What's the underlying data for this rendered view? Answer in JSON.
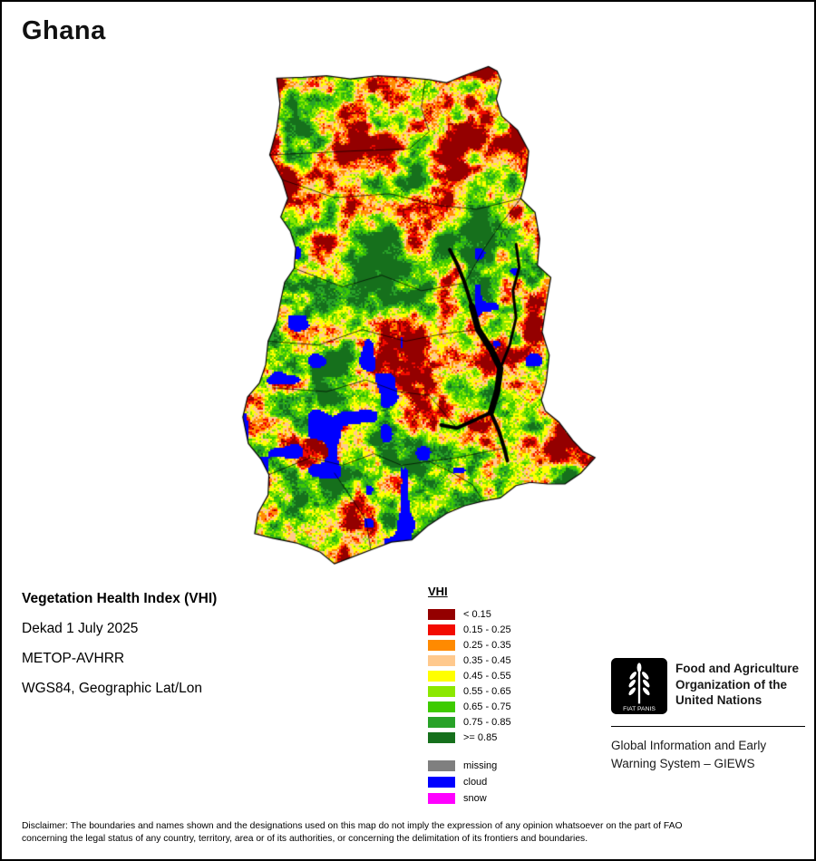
{
  "page": {
    "title": "Ghana"
  },
  "map": {
    "region": "Ghana",
    "layer": "Vegetation Health Index raster"
  },
  "info": {
    "product": "Vegetation Health Index (VHI)",
    "dekad": "Dekad 1 July 2025",
    "sensor": "METOP-AVHRR",
    "projection": "WGS84, Geographic Lat/Lon"
  },
  "legend": {
    "title": "VHI",
    "classes": [
      {
        "label": "< 0.15",
        "color": "#940000"
      },
      {
        "label": "0.15 - 0.25",
        "color": "#f30b00"
      },
      {
        "label": "0.25 - 0.35",
        "color": "#ff8a00"
      },
      {
        "label": "0.35 - 0.45",
        "color": "#ffc98d"
      },
      {
        "label": "0.45 - 0.55",
        "color": "#ffff00"
      },
      {
        "label": "0.55 - 0.65",
        "color": "#8ce800"
      },
      {
        "label": "0.65 - 0.75",
        "color": "#3ecb00"
      },
      {
        "label": "0.75 - 0.85",
        "color": "#28a228"
      },
      {
        "label": ">= 0.85",
        "color": "#16701c"
      }
    ],
    "flags": [
      {
        "label": "missing",
        "color": "#7f7f7f"
      },
      {
        "label": "cloud",
        "color": "#0000ff"
      },
      {
        "label": "snow",
        "color": "#ff00ff"
      }
    ]
  },
  "footer": {
    "logo_motto": "FIAT PANIS",
    "org_line1": "Food and Agriculture",
    "org_line2": "Organization of the",
    "org_line3": "United Nations",
    "giews_line1": "Global Information and Early",
    "giews_line2": "Warning System – GIEWS"
  },
  "disclaimer": {
    "line1": "Disclaimer: The boundaries and names shown and the designations used on this map do not imply the expression of any opinion whatsoever on the part of FAO",
    "line2": "concerning the legal status of any country, territory, area or of its authorities, or concerning the delimitation of its frontiers and boundaries."
  }
}
